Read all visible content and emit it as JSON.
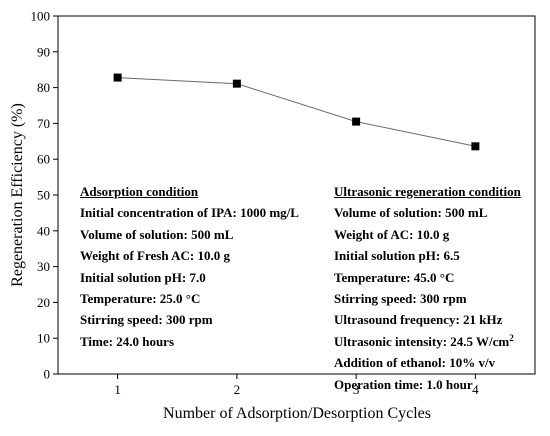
{
  "chart_data": {
    "type": "line",
    "x": [
      1,
      2,
      3,
      4
    ],
    "xticks": [
      "1",
      "2",
      "3",
      "4"
    ],
    "series": [
      {
        "values": [
          82.8,
          81.1,
          70.5,
          63.6
        ]
      }
    ],
    "xlabel": "Number of Adsorption/Desorption Cycles",
    "ylabel": "Regeneration Efficiency (%)",
    "ylim": [
      0,
      100
    ],
    "yticks": [
      "0",
      "10",
      "20",
      "30",
      "40",
      "50",
      "60",
      "70",
      "80",
      "90",
      "100"
    ],
    "line_color": "#6b6b6b",
    "marker_color": "#000000",
    "marker": "square",
    "grid": false,
    "annotations": {
      "left": {
        "heading": "Adsorption condition",
        "lines": [
          "Initial concentration of IPA: 1000 mg/L",
          "Volume of solution: 500 mL",
          "Weight of  Fresh AC: 10.0 g",
          "Initial solution pH: 7.0",
          "Temperature: 25.0 °C",
          "Stirring speed: 300 rpm",
          "Time: 24.0 hours"
        ]
      },
      "right": {
        "heading": "Ultrasonic regeneration condition",
        "lines": [
          "Volume of solution: 500 mL",
          "Weight of  AC: 10.0 g",
          "Initial solution pH: 6.5",
          "Temperature: 45.0 °C",
          "Stirring speed: 300 rpm",
          "Ultrasound frequency: 21 kHz"
        ],
        "intensity_text": "Ultrasonic intensity: 24.5 W/cm",
        "intensity_sup": "2",
        "tail_lines": [
          "Addition of ethanol: 10% v/v",
          "Operation time: 1.0 hour"
        ]
      }
    }
  }
}
